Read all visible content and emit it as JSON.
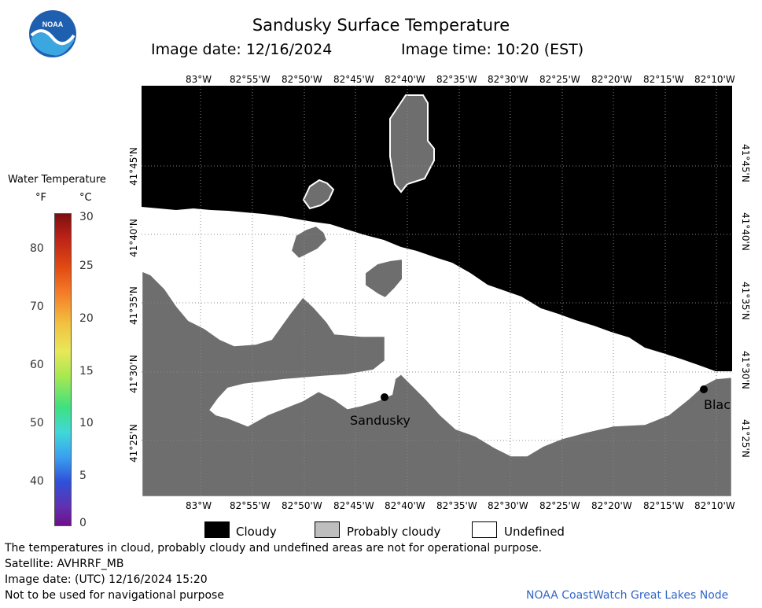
{
  "header": {
    "title": "Sandusky Surface Temperature",
    "image_date": "Image date: 12/16/2024",
    "image_time": "Image time: 10:20 (EST)",
    "logo_text": "NOAA"
  },
  "map": {
    "lon_labels": [
      "83°W",
      "82°55'W",
      "82°50'W",
      "82°45'W",
      "82°40'W",
      "82°35'W",
      "82°30'W",
      "82°25'W",
      "82°20'W",
      "82°15'W",
      "82°10'W"
    ],
    "lat_labels": [
      "41°45'N",
      "41°40'N",
      "41°35'N",
      "41°30'N",
      "41°25'N"
    ],
    "place_labels": {
      "sandusky": "Sandusky",
      "blac": "Blac"
    }
  },
  "legend": {
    "title": "Water Temperature",
    "unit_f": "°F",
    "unit_c": "°C",
    "f_ticks": [
      "80",
      "70",
      "60",
      "50",
      "40"
    ],
    "c_ticks": [
      "30",
      "25",
      "20",
      "15",
      "10",
      "5",
      "0"
    ],
    "scale_colors": [
      "#7a1010",
      "#c0301a",
      "#f06a10",
      "#f5a030",
      "#f0e050",
      "#a8e850",
      "#40e080",
      "#40d8d8",
      "#3aa0f0",
      "#3050d8",
      "#6030b0",
      "#70108a"
    ]
  },
  "key": {
    "items": [
      {
        "label": "Cloudy",
        "color": "#000000"
      },
      {
        "label": "Probably cloudy",
        "color": "#bebebe"
      },
      {
        "label": "Undefined",
        "color": "#ffffff"
      }
    ]
  },
  "footer": {
    "line1": "The temperatures in cloud, probably cloudy and undefined areas are not for operational purpose.",
    "line2": "Satellite: AVHRRF_MB",
    "line3": "Image date: (UTC) 12/16/2024  15:20",
    "line4": "Not to be used for navigational purpose",
    "credit": "NOAA CoastWatch Great Lakes Node"
  }
}
